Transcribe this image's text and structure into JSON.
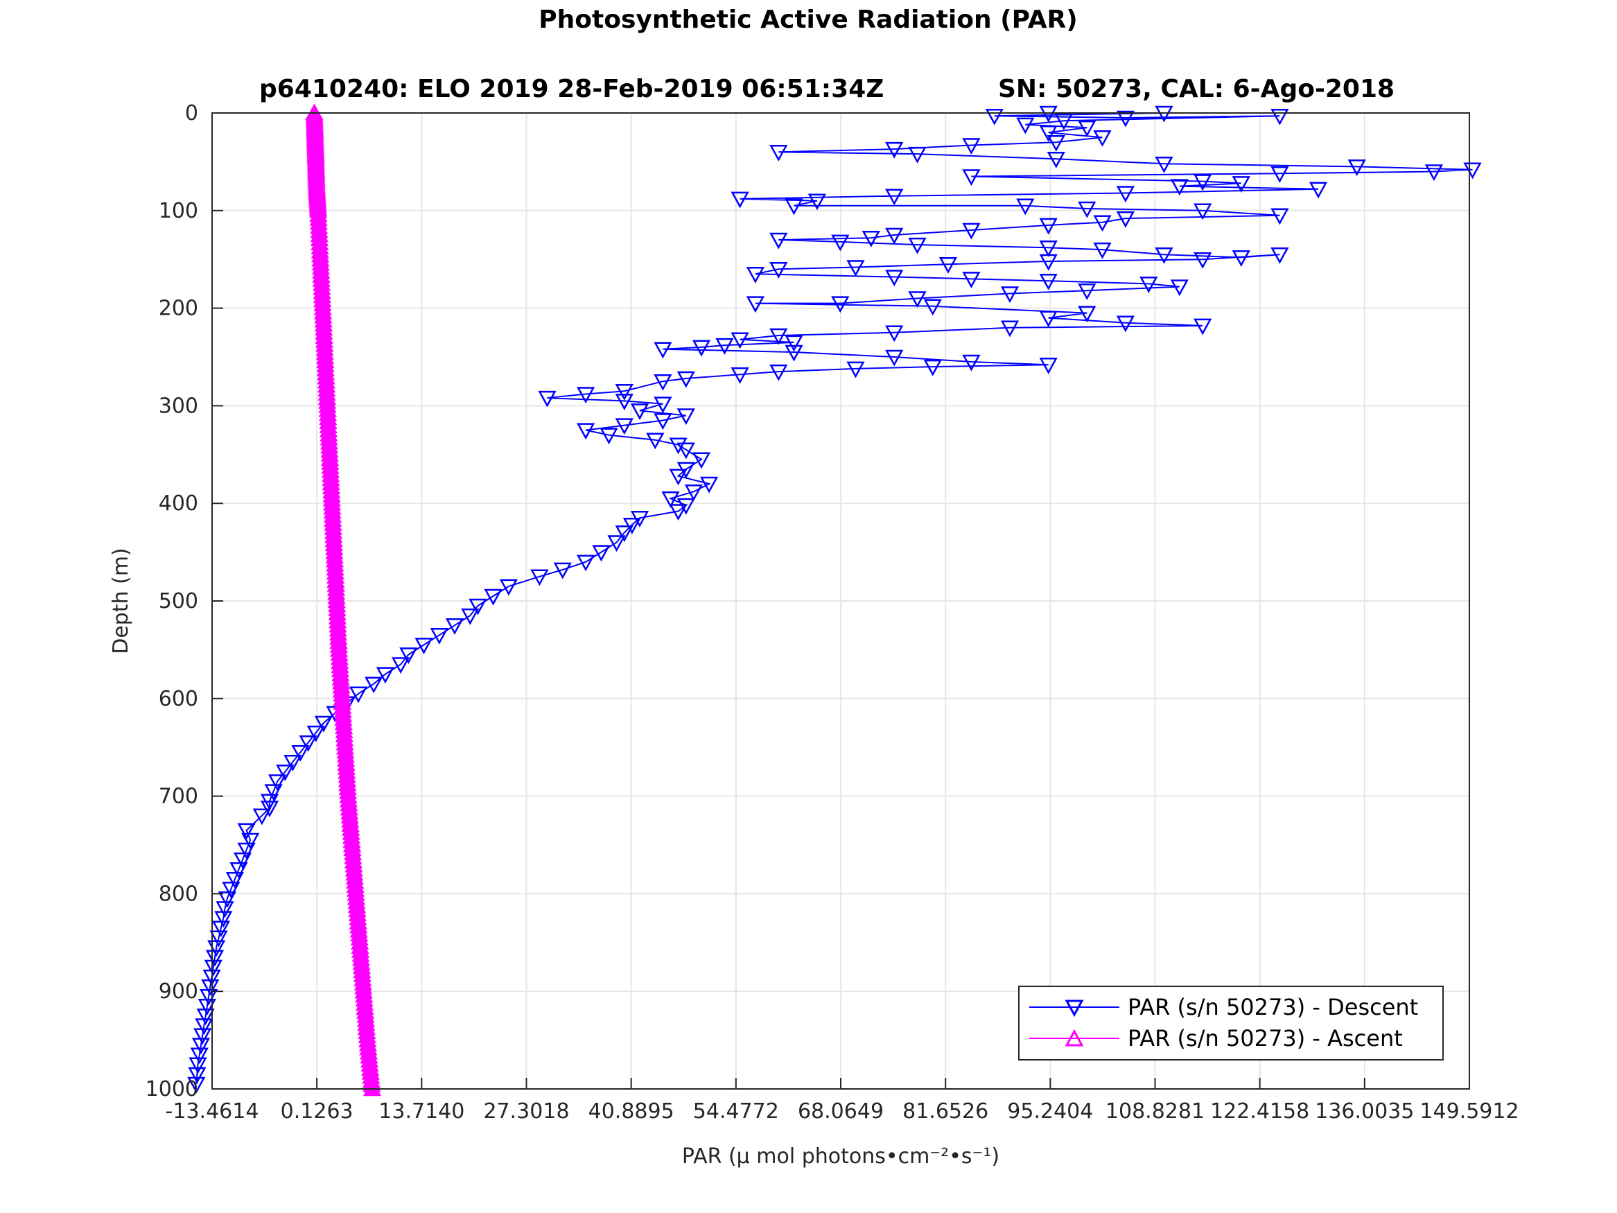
{
  "chart_data": {
    "type": "line",
    "title": "Photosynthetic Active Radiation (PAR)",
    "subtitle_left": "p6410240: ELO 2019 28-Feb-2019 06:51:34Z",
    "subtitle_right": "SN: 50273, CAL: 6-Ago-2018",
    "xlabel": "PAR (μ mol photons•cm⁻²•s⁻¹)",
    "ylabel": "Depth (m)",
    "xlim": [
      -13.4614,
      149.5912
    ],
    "ylim": [
      0,
      1000
    ],
    "y_reversed": true,
    "grid": true,
    "legend_position": "bottom-right",
    "xticks": [
      -13.4614,
      0.1263,
      13.714,
      27.3018,
      40.8895,
      54.4772,
      68.0649,
      81.6526,
      95.2404,
      108.8281,
      122.4158,
      136.0035,
      149.5912
    ],
    "xtick_labels": [
      "-13.4614",
      "0.1263",
      "13.7140",
      "27.3018",
      "40.8895",
      "54.4772",
      "68.0649",
      "81.6526",
      "95.2404",
      "108.8281",
      "122.4158",
      "136.0035",
      "149.5912"
    ],
    "yticks": [
      0,
      100,
      200,
      300,
      400,
      500,
      600,
      700,
      800,
      900,
      1000
    ],
    "ytick_labels": [
      "0",
      "100",
      "200",
      "300",
      "400",
      "500",
      "600",
      "700",
      "800",
      "900",
      "1000"
    ],
    "series": [
      {
        "name": "PAR (s/n 50273) - Descent",
        "color": "#0000ff",
        "marker": "triangle-down",
        "points": [
          [
            95,
            0
          ],
          [
            110,
            0
          ],
          [
            88,
            3
          ],
          [
            105,
            5
          ],
          [
            125,
            3
          ],
          [
            97,
            8
          ],
          [
            92,
            12
          ],
          [
            100,
            15
          ],
          [
            95,
            20
          ],
          [
            102,
            25
          ],
          [
            96,
            30
          ],
          [
            85,
            33
          ],
          [
            75,
            37
          ],
          [
            60,
            40
          ],
          [
            78,
            42
          ],
          [
            96,
            47
          ],
          [
            110,
            52
          ],
          [
            135,
            55
          ],
          [
            150,
            58
          ],
          [
            145,
            60
          ],
          [
            125,
            62
          ],
          [
            85,
            65
          ],
          [
            115,
            70
          ],
          [
            120,
            72
          ],
          [
            112,
            75
          ],
          [
            130,
            78
          ],
          [
            105,
            82
          ],
          [
            75,
            85
          ],
          [
            55,
            88
          ],
          [
            65,
            90
          ],
          [
            62,
            95
          ],
          [
            92,
            95
          ],
          [
            100,
            98
          ],
          [
            115,
            100
          ],
          [
            125,
            105
          ],
          [
            105,
            108
          ],
          [
            102,
            112
          ],
          [
            95,
            115
          ],
          [
            85,
            120
          ],
          [
            75,
            125
          ],
          [
            72,
            128
          ],
          [
            60,
            130
          ],
          [
            68,
            132
          ],
          [
            78,
            135
          ],
          [
            95,
            138
          ],
          [
            102,
            140
          ],
          [
            110,
            145
          ],
          [
            120,
            148
          ],
          [
            125,
            145
          ],
          [
            115,
            150
          ],
          [
            95,
            152
          ],
          [
            82,
            155
          ],
          [
            70,
            158
          ],
          [
            60,
            160
          ],
          [
            57,
            165
          ],
          [
            75,
            168
          ],
          [
            85,
            170
          ],
          [
            95,
            172
          ],
          [
            108,
            175
          ],
          [
            112,
            178
          ],
          [
            100,
            182
          ],
          [
            90,
            185
          ],
          [
            78,
            190
          ],
          [
            68,
            195
          ],
          [
            57,
            195
          ],
          [
            80,
            198
          ],
          [
            100,
            205
          ],
          [
            95,
            210
          ],
          [
            105,
            215
          ],
          [
            115,
            218
          ],
          [
            90,
            220
          ],
          [
            75,
            225
          ],
          [
            60,
            228
          ],
          [
            55,
            232
          ],
          [
            62,
            235
          ],
          [
            53,
            238
          ],
          [
            50,
            240
          ],
          [
            45,
            242
          ],
          [
            62,
            245
          ],
          [
            75,
            250
          ],
          [
            85,
            255
          ],
          [
            95,
            258
          ],
          [
            80,
            260
          ],
          [
            70,
            262
          ],
          [
            60,
            265
          ],
          [
            55,
            268
          ],
          [
            48,
            272
          ],
          [
            45,
            275
          ],
          [
            40,
            285
          ],
          [
            35,
            288
          ],
          [
            30,
            292
          ],
          [
            40,
            295
          ],
          [
            45,
            298
          ],
          [
            42,
            305
          ],
          [
            48,
            310
          ],
          [
            45,
            315
          ],
          [
            40,
            320
          ],
          [
            35,
            325
          ],
          [
            38,
            330
          ],
          [
            44,
            335
          ],
          [
            47,
            340
          ],
          [
            48,
            345
          ],
          [
            50,
            355
          ],
          [
            48,
            365
          ],
          [
            47,
            372
          ],
          [
            51,
            380
          ],
          [
            49,
            388
          ],
          [
            46,
            395
          ],
          [
            48,
            402
          ],
          [
            47,
            408
          ],
          [
            42,
            415
          ],
          [
            41,
            422
          ],
          [
            40,
            430
          ],
          [
            39,
            440
          ],
          [
            37,
            450
          ],
          [
            35,
            460
          ],
          [
            32,
            468
          ],
          [
            29,
            475
          ],
          [
            25,
            485
          ],
          [
            23,
            495
          ],
          [
            21,
            505
          ],
          [
            20,
            515
          ],
          [
            18,
            525
          ],
          [
            16,
            535
          ],
          [
            14,
            545
          ],
          [
            12,
            555
          ],
          [
            11,
            565
          ],
          [
            9,
            575
          ],
          [
            7.5,
            585
          ],
          [
            5.5,
            595
          ],
          [
            4,
            605
          ],
          [
            2.5,
            615
          ],
          [
            1,
            625
          ],
          [
            0,
            635
          ],
          [
            -1,
            645
          ],
          [
            -2,
            655
          ],
          [
            -3,
            665
          ],
          [
            -4,
            675
          ],
          [
            -5,
            685
          ],
          [
            -5.5,
            695
          ],
          [
            -6,
            705
          ],
          [
            -6,
            712
          ],
          [
            -7,
            720
          ],
          [
            -9,
            735
          ],
          [
            -8.5,
            745
          ],
          [
            -9,
            755
          ],
          [
            -9.5,
            765
          ],
          [
            -10,
            775
          ],
          [
            -10.5,
            785
          ],
          [
            -11,
            795
          ],
          [
            -11.5,
            805
          ],
          [
            -11.8,
            815
          ],
          [
            -12,
            825
          ],
          [
            -12.3,
            835
          ],
          [
            -12.6,
            845
          ],
          [
            -12.9,
            855
          ],
          [
            -13.1,
            865
          ],
          [
            -13.3,
            875
          ],
          [
            -13.5,
            885
          ],
          [
            -13.7,
            895
          ],
          [
            -13.9,
            905
          ],
          [
            -14.1,
            915
          ],
          [
            -14.3,
            925
          ],
          [
            -14.5,
            935
          ],
          [
            -14.7,
            945
          ],
          [
            -14.9,
            955
          ],
          [
            -15.1,
            965
          ],
          [
            -15.3,
            975
          ],
          [
            -15.4,
            985
          ],
          [
            -15.5,
            995
          ]
        ]
      },
      {
        "name": "PAR (s/n 50273) - Ascent",
        "color": "#ff00ff",
        "marker": "triangle-up",
        "points": [
          [
            -0.2,
            0
          ],
          [
            -0.1,
            25
          ],
          [
            0,
            50
          ],
          [
            0.1,
            75
          ],
          [
            0.3,
            100
          ],
          [
            0.6,
            150
          ],
          [
            0.9,
            200
          ],
          [
            1.2,
            250
          ],
          [
            1.5,
            300
          ],
          [
            1.8,
            350
          ],
          [
            2.1,
            400
          ],
          [
            2.4,
            450
          ],
          [
            2.7,
            500
          ],
          [
            3.0,
            550
          ],
          [
            3.4,
            600
          ],
          [
            3.8,
            650
          ],
          [
            4.2,
            700
          ],
          [
            4.7,
            750
          ],
          [
            5.2,
            800
          ],
          [
            5.7,
            850
          ],
          [
            6.2,
            900
          ],
          [
            6.7,
            950
          ],
          [
            7.3,
            1000
          ]
        ]
      }
    ]
  }
}
